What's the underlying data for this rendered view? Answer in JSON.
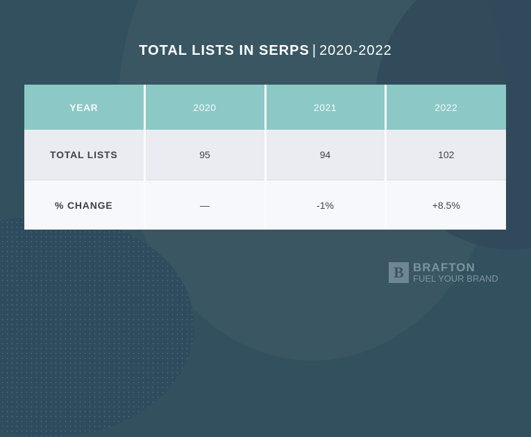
{
  "title": {
    "bold": "TOTAL LISTS IN SERPS",
    "separator": "|",
    "range": "2020-2022"
  },
  "table": {
    "header": [
      "YEAR",
      "2020",
      "2021",
      "2022"
    ],
    "rows": [
      [
        "TOTAL LISTS",
        "95",
        "94",
        "102"
      ],
      [
        "% CHANGE",
        "—",
        "-1%",
        "+8.5%"
      ]
    ]
  },
  "brand": {
    "mark": "B",
    "name": "BRAFTON",
    "tagline": "FUEL YOUR BRAND"
  },
  "colors": {
    "background": "#33505f",
    "header": "#8cc8c5",
    "row1": "#ebecf2",
    "row2": "#f7f8fb"
  },
  "chart_data": {
    "type": "table",
    "title": "TOTAL LISTS IN SERPS | 2020-2022",
    "categories": [
      "2020",
      "2021",
      "2022"
    ],
    "series": [
      {
        "name": "TOTAL LISTS",
        "values": [
          95,
          94,
          102
        ]
      },
      {
        "name": "% CHANGE",
        "values": [
          null,
          -1,
          8.5
        ]
      }
    ]
  }
}
